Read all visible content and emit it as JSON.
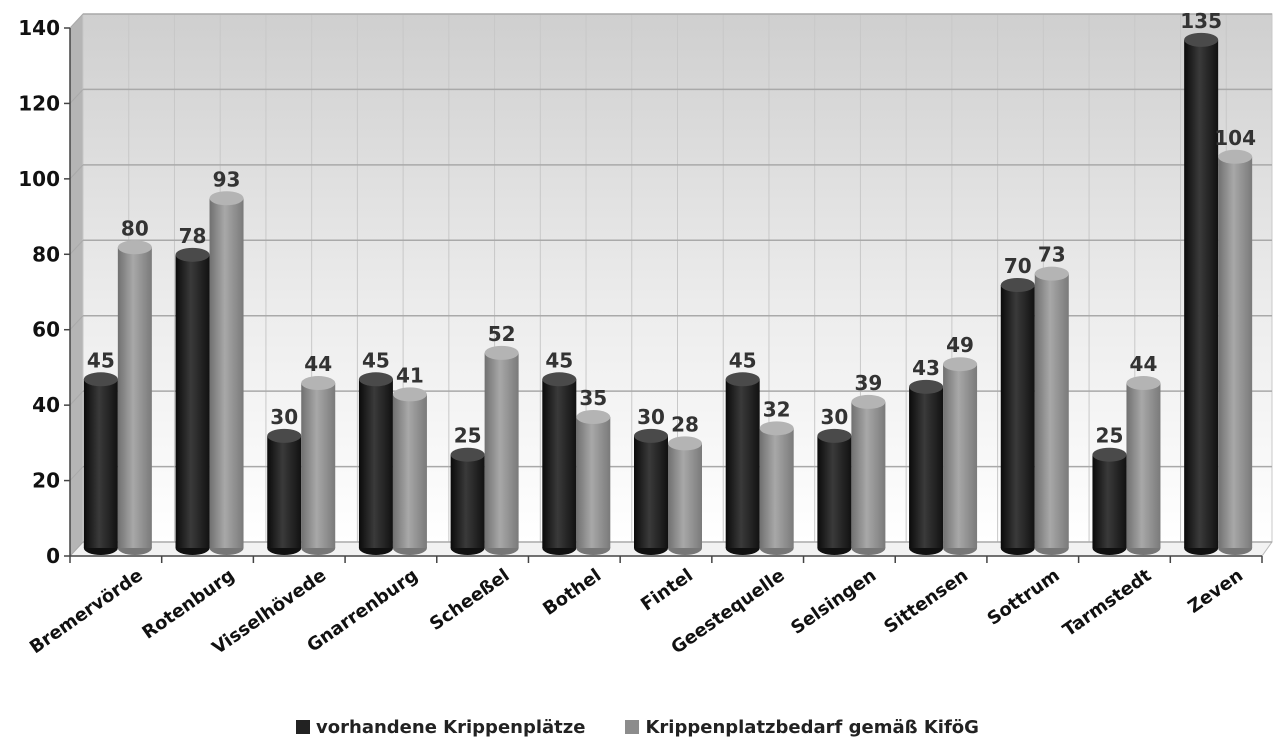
{
  "chart_data": {
    "type": "bar",
    "title": "",
    "xlabel": "",
    "ylabel": "",
    "ylim": [
      0,
      140
    ],
    "yticks": [
      0,
      20,
      40,
      60,
      80,
      100,
      120,
      140
    ],
    "grid": true,
    "legend_position": "bottom",
    "categories": [
      "Bremervörde",
      "Rotenburg",
      "Visselhövede",
      "Gnarrenburg",
      "Scheeßel",
      "Bothel",
      "Fintel",
      "Geestequelle",
      "Selsingen",
      "Sittensen",
      "Sottrum",
      "Tarmstedt",
      "Zeven"
    ],
    "series": [
      {
        "name": "vorhandene Krippenplätze",
        "color": "#222222",
        "values": [
          45,
          78,
          30,
          45,
          25,
          45,
          30,
          45,
          30,
          43,
          70,
          25,
          135
        ]
      },
      {
        "name": "Krippenplatzbedarf gemäß KiföG",
        "color": "#8c8c8c",
        "values": [
          80,
          93,
          44,
          41,
          52,
          35,
          28,
          32,
          39,
          49,
          73,
          44,
          104
        ]
      }
    ]
  }
}
